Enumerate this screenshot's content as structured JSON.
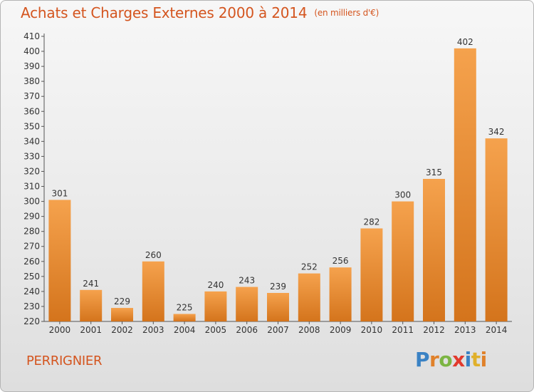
{
  "header": {
    "title": "Achats et Charges Externes 2000 à 2014",
    "unit": "(en milliers d'€)"
  },
  "footer": {
    "location": "PERRIGNIER",
    "logo": [
      "P",
      "r",
      "o",
      "x",
      "i",
      "t",
      "i"
    ]
  },
  "colors": {
    "bar_top": "#f5a24d",
    "bar_bottom": "#d4741c",
    "title": "#d4551f",
    "logo": [
      "#3a82c4",
      "#e0812a",
      "#7cb543",
      "#e23a2d",
      "#3a82c4",
      "#e0b02a",
      "#e0812a"
    ]
  },
  "chart_data": {
    "type": "bar",
    "title": "Achats et Charges Externes 2000 à 2014",
    "categories": [
      "2000",
      "2001",
      "2002",
      "2003",
      "2004",
      "2005",
      "2006",
      "2007",
      "2008",
      "2009",
      "2010",
      "2011",
      "2012",
      "2013",
      "2014"
    ],
    "values": [
      301,
      241,
      229,
      260,
      225,
      240,
      243,
      239,
      252,
      256,
      282,
      300,
      315,
      402,
      342
    ],
    "ylim": [
      220,
      410
    ],
    "yticks": [
      220,
      230,
      240,
      250,
      260,
      270,
      280,
      290,
      300,
      310,
      320,
      330,
      340,
      350,
      360,
      370,
      380,
      390,
      400,
      410
    ],
    "grid": false,
    "data_labels": true
  }
}
